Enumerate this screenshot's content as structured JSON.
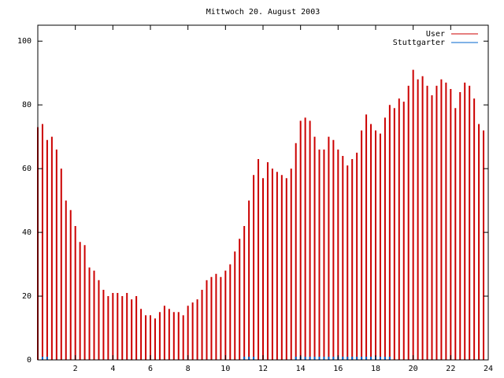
{
  "chart_data": {
    "type": "impulse",
    "title": "Mittwoch 20. August 2003",
    "x": [
      0,
      0.25,
      0.5,
      0.75,
      1,
      1.25,
      1.5,
      1.75,
      2,
      2.25,
      2.5,
      2.75,
      3,
      3.25,
      3.5,
      3.75,
      4,
      4.25,
      4.5,
      4.75,
      5,
      5.25,
      5.5,
      5.75,
      6,
      6.25,
      6.5,
      6.75,
      7,
      7.25,
      7.5,
      7.75,
      8,
      8.25,
      8.5,
      8.75,
      9,
      9.25,
      9.5,
      9.75,
      10,
      10.25,
      10.5,
      10.75,
      11,
      11.25,
      11.5,
      11.75,
      12,
      12.25,
      12.5,
      12.75,
      13,
      13.25,
      13.5,
      13.75,
      14,
      14.25,
      14.5,
      14.75,
      15,
      15.25,
      15.5,
      15.75,
      16,
      16.25,
      16.5,
      16.75,
      17,
      17.25,
      17.5,
      17.75,
      18,
      18.25,
      18.5,
      18.75,
      19,
      19.25,
      19.5,
      19.75,
      20,
      20.25,
      20.5,
      20.75,
      21,
      21.25,
      21.5,
      21.75,
      22,
      22.25,
      22.5,
      22.75,
      23,
      23.25,
      23.5,
      23.75
    ],
    "series": [
      {
        "name": "User",
        "color": "#cc0000",
        "values": [
          73,
          74,
          69,
          70,
          66,
          60,
          50,
          47,
          42,
          37,
          36,
          29,
          28,
          25,
          22,
          20,
          21,
          21,
          20,
          21,
          19,
          20,
          16,
          14,
          14,
          13,
          15,
          17,
          16,
          15,
          15,
          14,
          17,
          18,
          19,
          22,
          25,
          26,
          27,
          26,
          28,
          30,
          34,
          38,
          42,
          50,
          58,
          63,
          57,
          62,
          60,
          59,
          58,
          57,
          60,
          68,
          75,
          76,
          75,
          70,
          66,
          66,
          70,
          69,
          66,
          64,
          61,
          63,
          65,
          72,
          77,
          74,
          72,
          71,
          76,
          80,
          79,
          82,
          81,
          86,
          91,
          88,
          89,
          86,
          83,
          86,
          88,
          87,
          85,
          79,
          84,
          87,
          86,
          82,
          74,
          72
        ]
      },
      {
        "name": "Stuttgarter",
        "color": "#0066cc",
        "values": [
          0,
          1,
          1,
          0,
          0,
          0,
          0,
          0,
          0,
          0,
          0,
          0,
          0,
          0,
          0,
          0,
          0,
          0,
          0,
          0,
          0,
          0,
          0,
          0,
          0,
          0,
          0,
          0,
          0,
          0,
          0,
          0,
          0,
          0,
          0,
          0,
          0,
          0,
          0,
          0,
          0,
          0,
          0,
          0,
          1,
          1,
          1,
          0,
          0,
          0,
          0,
          0,
          0,
          0,
          0,
          1,
          1,
          1,
          1,
          1,
          1,
          1,
          1,
          1,
          1,
          1,
          1,
          1,
          1,
          1,
          1,
          1,
          1,
          1,
          1,
          1,
          0,
          0,
          0,
          0,
          0,
          0,
          0,
          0,
          0,
          0,
          0,
          0,
          0,
          0,
          0,
          0,
          0,
          0,
          0,
          0
        ]
      }
    ],
    "xlim": [
      0,
      24
    ],
    "xticks": [
      2,
      4,
      6,
      8,
      10,
      12,
      14,
      16,
      18,
      20,
      22,
      24
    ],
    "ylim": [
      0,
      105
    ],
    "yticks": [
      0,
      20,
      40,
      60,
      80,
      100
    ],
    "legend": "upper right"
  }
}
